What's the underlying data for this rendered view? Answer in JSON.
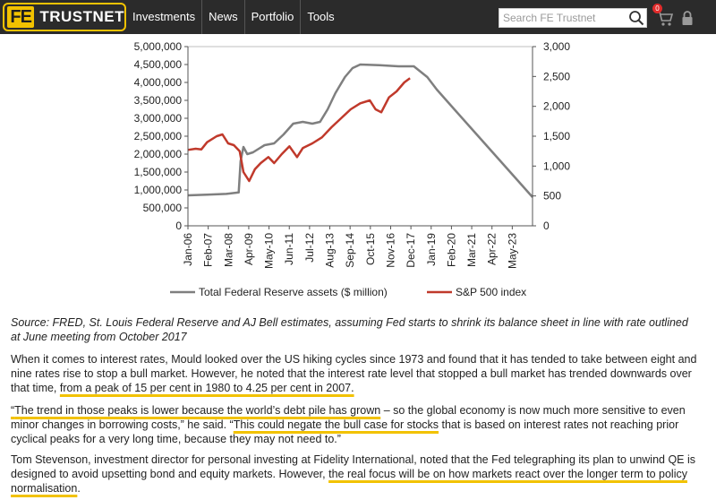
{
  "header": {
    "logo_mark": "FE",
    "logo_text": "TRUSTNET",
    "nav": [
      {
        "label": "Investments"
      },
      {
        "label": "News"
      },
      {
        "label": "Portfolio"
      },
      {
        "label": "Tools"
      }
    ],
    "search_placeholder": "Search FE Trustnet",
    "cart_count": "0",
    "icons": [
      "search-icon",
      "cart-icon",
      "lock-icon"
    ],
    "accent_color": "#f2c200",
    "bar_color": "#2b2b2b"
  },
  "chart_data": {
    "type": "line",
    "title": "",
    "x_tick_labels": [
      "Jan-06",
      "Feb-07",
      "Mar-08",
      "Apr-09",
      "May-10",
      "Jun-11",
      "Jul-12",
      "Aug-13",
      "Sep-14",
      "Oct-15",
      "Nov-16",
      "Dec-17",
      "Jan-19",
      "Feb-20",
      "Mar-21",
      "Apr-22",
      "May-23"
    ],
    "x_range": [
      2006.0,
      2024.0
    ],
    "y_left": {
      "min": 0,
      "max": 5000000,
      "step": 500000,
      "tick_labels": [
        "0",
        "500,000",
        "1,000,000",
        "1,500,000",
        "2,000,000",
        "2,500,000",
        "3,000,000",
        "3,500,000",
        "4,000,000",
        "4,500,000",
        "5,000,000"
      ]
    },
    "y_right": {
      "min": 0,
      "max": 3000,
      "step": 500,
      "tick_labels": [
        "0",
        "500",
        "1,000",
        "1,500",
        "2,000",
        "2,500",
        "3,000"
      ]
    },
    "legend_position": "bottom",
    "series": [
      {
        "name": "Total Federal Reserve assets ($ million)",
        "axis": "left",
        "color": "#7f7f7f",
        "points": [
          [
            2006.0,
            850000
          ],
          [
            2007.0,
            870000
          ],
          [
            2008.0,
            890000
          ],
          [
            2008.65,
            930000
          ],
          [
            2008.75,
            1800000
          ],
          [
            2008.9,
            2200000
          ],
          [
            2009.1,
            2000000
          ],
          [
            2009.4,
            2050000
          ],
          [
            2009.7,
            2150000
          ],
          [
            2010.0,
            2250000
          ],
          [
            2010.5,
            2300000
          ],
          [
            2011.0,
            2550000
          ],
          [
            2011.5,
            2850000
          ],
          [
            2012.0,
            2900000
          ],
          [
            2012.5,
            2850000
          ],
          [
            2012.9,
            2900000
          ],
          [
            2013.3,
            3250000
          ],
          [
            2013.7,
            3700000
          ],
          [
            2014.2,
            4150000
          ],
          [
            2014.6,
            4400000
          ],
          [
            2015.0,
            4500000
          ],
          [
            2016.0,
            4480000
          ],
          [
            2017.0,
            4450000
          ],
          [
            2017.8,
            4450000
          ],
          [
            2018.5,
            4150000
          ],
          [
            2019.0,
            3800000
          ],
          [
            2020.0,
            3200000
          ],
          [
            2021.0,
            2600000
          ],
          [
            2022.0,
            2000000
          ],
          [
            2023.0,
            1400000
          ],
          [
            2024.0,
            800000
          ]
        ]
      },
      {
        "name": "S&P 500 index",
        "axis": "right",
        "color": "#c0392b",
        "points": [
          [
            2006.0,
            1270
          ],
          [
            2006.4,
            1290
          ],
          [
            2006.7,
            1280
          ],
          [
            2007.0,
            1400
          ],
          [
            2007.5,
            1500
          ],
          [
            2007.8,
            1530
          ],
          [
            2008.1,
            1380
          ],
          [
            2008.4,
            1350
          ],
          [
            2008.7,
            1250
          ],
          [
            2008.9,
            900
          ],
          [
            2009.2,
            750
          ],
          [
            2009.5,
            950
          ],
          [
            2009.8,
            1050
          ],
          [
            2010.2,
            1150
          ],
          [
            2010.5,
            1050
          ],
          [
            2010.9,
            1200
          ],
          [
            2011.3,
            1330
          ],
          [
            2011.7,
            1150
          ],
          [
            2012.0,
            1300
          ],
          [
            2012.5,
            1380
          ],
          [
            2013.0,
            1480
          ],
          [
            2013.5,
            1650
          ],
          [
            2014.0,
            1800
          ],
          [
            2014.5,
            1950
          ],
          [
            2015.0,
            2050
          ],
          [
            2015.5,
            2100
          ],
          [
            2015.8,
            1950
          ],
          [
            2016.1,
            1900
          ],
          [
            2016.5,
            2150
          ],
          [
            2016.9,
            2250
          ],
          [
            2017.3,
            2400
          ],
          [
            2017.6,
            2470
          ]
        ]
      }
    ]
  },
  "caption": "Source: FRED, St. Louis Federal Reserve and AJ Bell estimates, assuming Fed starts to shrink its balance sheet in line with rate outlined at June meeting from October 2017",
  "paragraphs": [
    {
      "before": "When it comes to interest rates, Mould looked over the US hiking cycles since 1973 and found that it has tended to take between eight and nine rates rise to stop a bull market. However, he noted that the interest rate level that stopped a bull market has trended downwards over that time, ",
      "highlight": "from a peak of 15 per cent in 1980 to 4.25 per cent in 2007.",
      "after": ""
    },
    {
      "open_quote": "“",
      "highlight1": "The trend in those peaks is lower because the world’s debt pile has grown",
      "middle": " – so the global economy is now much more sensitive to even minor changes in borrowing costs,” he said. “",
      "highlight2": "This could negate the bull case for stocks",
      "after": " that is based on interest rates not reaching prior cyclical peaks for a very long time, because they may not need to.”"
    },
    {
      "before": "Tom Stevenson, investment director for personal investing at Fidelity International, noted that the Fed telegraphing its plan to unwind QE is designed to avoid upsetting bond and equity markets. However, ",
      "highlight": "the real focus will be on how markets react over the longer term to policy normalisation",
      "after": "."
    }
  ]
}
